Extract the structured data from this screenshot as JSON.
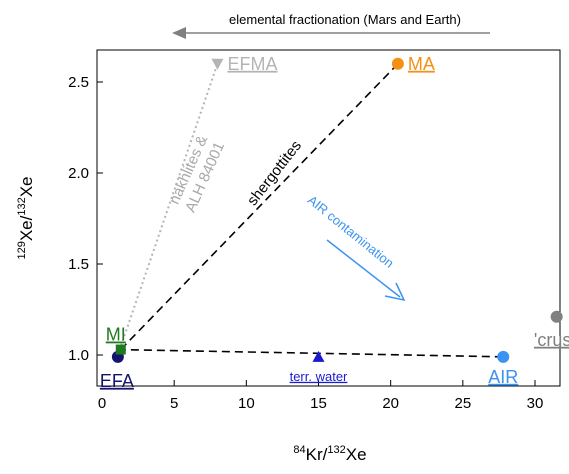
{
  "chart_data": {
    "type": "scatter",
    "xlabel": "84Kr/132Xe",
    "xlabel_sup": "84",
    "xlabel_main": "Kr/",
    "xlabel_sup2": "132",
    "xlabel_tail": "Xe",
    "ylabel_sup": "129",
    "ylabel_main": "Xe/",
    "ylabel_sup2": "132",
    "ylabel_tail": "Xe",
    "xlim": [
      0,
      32.5
    ],
    "ylim": [
      0.87,
      2.82
    ],
    "x_ticks": [
      0,
      5,
      10,
      15,
      20,
      25,
      30
    ],
    "y_ticks": [
      1.0,
      1.5,
      2.0,
      2.5
    ],
    "x_tick_labels": [
      "0",
      "5",
      "10",
      "15",
      "20",
      "25",
      "30"
    ],
    "y_tick_labels": [
      "1.0",
      "1.5",
      "2.0",
      "2.5"
    ],
    "points": [
      {
        "label": "EFA",
        "x": 1.1,
        "y": 0.99,
        "color": "#14146e",
        "marker": "circle",
        "label_style": "underline"
      },
      {
        "label": "MI",
        "x": 1.3,
        "y": 1.03,
        "color": "#1e7a1e",
        "marker": "square",
        "label_style": "underline"
      },
      {
        "label": "MA",
        "x": 20.5,
        "y": 2.6,
        "color": "#f39015",
        "marker": "circle",
        "label_style": "underline"
      },
      {
        "label": "EFMA",
        "x": 8.0,
        "y": 2.6,
        "color": "#b4b4b4",
        "marker": "triangle-down",
        "label_style": "underline"
      },
      {
        "label": "terr. water",
        "x": 15.0,
        "y": 0.99,
        "color": "#1a1ad0",
        "marker": "triangle",
        "label_style": "underline"
      },
      {
        "label": "AIR",
        "x": 27.8,
        "y": 0.99,
        "color": "#3a93f0",
        "marker": "circle",
        "label_style": "underline"
      },
      {
        "label": "'crush",
        "x": 31.5,
        "y": 1.21,
        "color": "#808080",
        "marker": "circle",
        "label_style": "underline"
      }
    ],
    "lines": [
      {
        "label": "shergottites",
        "from": [
          1.3,
          1.03
        ],
        "to": [
          20.5,
          2.6
        ],
        "color": "#000000",
        "style": "dashed"
      },
      {
        "label": "",
        "from": [
          1.1,
          1.03
        ],
        "to": [
          27.8,
          0.99
        ],
        "color": "#000000",
        "style": "dashed"
      },
      {
        "label": "nakhlites & ALH 84001",
        "from": [
          1.1,
          1.0
        ],
        "to": [
          8.0,
          2.6
        ],
        "color": "#b4b4b4",
        "style": "dotted"
      }
    ],
    "annotations": {
      "shergottites": "shergottites",
      "nakhlites_line1": "nakhlites &",
      "nakhlites_line2": "ALH 84001",
      "air_contamination": "AIR contamination",
      "fractionation": "elemental fractionation (Mars and Earth)"
    },
    "colors": {
      "air_contamination": "#3a93f0",
      "fractionation_arrow": "#808080"
    }
  }
}
